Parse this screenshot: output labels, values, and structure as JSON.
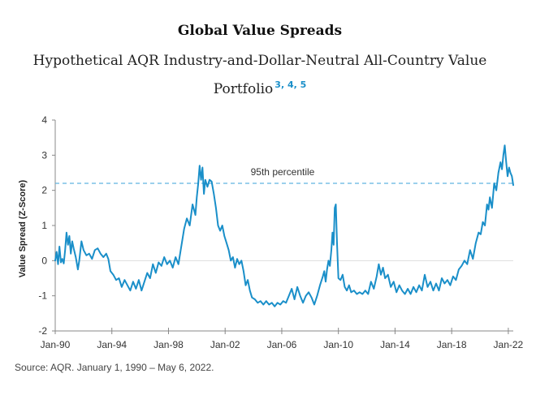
{
  "chart_data": {
    "type": "line",
    "title": "Global Value Spreads",
    "subtitle": "Hypothetical AQR Industry-and-Dollar-Neutral All-Country Value Portfolio",
    "footnote_refs": "3, 4, 5",
    "xlabel": "",
    "ylabel": "Value Spread (Z-Score)",
    "ylim": [
      -2,
      4
    ],
    "yticks": [
      4,
      3,
      2,
      1,
      0,
      -1,
      -2
    ],
    "xlim": [
      1990,
      2022.35
    ],
    "xticks": [
      {
        "label": "Jan-90",
        "year": 1990
      },
      {
        "label": "Jan-94",
        "year": 1994
      },
      {
        "label": "Jan-98",
        "year": 1998
      },
      {
        "label": "Jan-02",
        "year": 2002
      },
      {
        "label": "Jan-06",
        "year": 2006
      },
      {
        "label": "Jan-10",
        "year": 2010
      },
      {
        "label": "Jan-14",
        "year": 2014
      },
      {
        "label": "Jan-18",
        "year": 2018
      },
      {
        "label": "Jan-22",
        "year": 2022
      }
    ],
    "reference_line": {
      "label": "95th percentile",
      "value": 2.2
    },
    "series": [
      {
        "name": "Value Spread",
        "color": "#1a8fc9",
        "points": [
          [
            1990.0,
            0.0
          ],
          [
            1990.1,
            0.25
          ],
          [
            1990.2,
            -0.1
          ],
          [
            1990.3,
            0.4
          ],
          [
            1990.4,
            -0.05
          ],
          [
            1990.5,
            0.05
          ],
          [
            1990.6,
            -0.08
          ],
          [
            1990.7,
            0.3
          ],
          [
            1990.8,
            0.8
          ],
          [
            1990.9,
            0.45
          ],
          [
            1991.0,
            0.7
          ],
          [
            1991.1,
            0.2
          ],
          [
            1991.2,
            0.55
          ],
          [
            1991.3,
            0.35
          ],
          [
            1991.45,
            0.1
          ],
          [
            1991.6,
            -0.25
          ],
          [
            1991.7,
            0.0
          ],
          [
            1991.85,
            0.55
          ],
          [
            1992.0,
            0.3
          ],
          [
            1992.2,
            0.15
          ],
          [
            1992.4,
            0.2
          ],
          [
            1992.6,
            0.05
          ],
          [
            1992.8,
            0.3
          ],
          [
            1993.0,
            0.35
          ],
          [
            1993.2,
            0.2
          ],
          [
            1993.4,
            0.1
          ],
          [
            1993.6,
            0.2
          ],
          [
            1993.75,
            0.05
          ],
          [
            1993.9,
            -0.3
          ],
          [
            1994.1,
            -0.4
          ],
          [
            1994.3,
            -0.55
          ],
          [
            1994.5,
            -0.5
          ],
          [
            1994.7,
            -0.75
          ],
          [
            1994.9,
            -0.55
          ],
          [
            1995.1,
            -0.7
          ],
          [
            1995.3,
            -0.85
          ],
          [
            1995.5,
            -0.6
          ],
          [
            1995.7,
            -0.8
          ],
          [
            1995.9,
            -0.55
          ],
          [
            1996.1,
            -0.85
          ],
          [
            1996.3,
            -0.6
          ],
          [
            1996.5,
            -0.35
          ],
          [
            1996.7,
            -0.5
          ],
          [
            1996.9,
            -0.1
          ],
          [
            1997.1,
            -0.35
          ],
          [
            1997.3,
            -0.05
          ],
          [
            1997.5,
            -0.15
          ],
          [
            1997.7,
            0.1
          ],
          [
            1997.9,
            -0.1
          ],
          [
            1998.1,
            0.0
          ],
          [
            1998.3,
            -0.2
          ],
          [
            1998.5,
            0.1
          ],
          [
            1998.7,
            -0.1
          ],
          [
            1998.9,
            0.4
          ],
          [
            1999.1,
            0.9
          ],
          [
            1999.3,
            1.2
          ],
          [
            1999.5,
            1.0
          ],
          [
            1999.7,
            1.6
          ],
          [
            1999.9,
            1.3
          ],
          [
            2000.0,
            1.8
          ],
          [
            2000.1,
            2.2
          ],
          [
            2000.2,
            2.7
          ],
          [
            2000.3,
            2.3
          ],
          [
            2000.4,
            2.65
          ],
          [
            2000.5,
            1.9
          ],
          [
            2000.6,
            2.3
          ],
          [
            2000.75,
            2.1
          ],
          [
            2000.9,
            2.3
          ],
          [
            2001.05,
            2.25
          ],
          [
            2001.2,
            1.9
          ],
          [
            2001.35,
            1.5
          ],
          [
            2001.5,
            1.0
          ],
          [
            2001.65,
            0.85
          ],
          [
            2001.8,
            1.0
          ],
          [
            2001.95,
            0.7
          ],
          [
            2002.1,
            0.5
          ],
          [
            2002.25,
            0.3
          ],
          [
            2002.4,
            0.0
          ],
          [
            2002.55,
            0.1
          ],
          [
            2002.7,
            -0.2
          ],
          [
            2002.85,
            0.05
          ],
          [
            2003.0,
            -0.1
          ],
          [
            2003.15,
            0.0
          ],
          [
            2003.3,
            -0.3
          ],
          [
            2003.45,
            -0.7
          ],
          [
            2003.6,
            -0.55
          ],
          [
            2003.75,
            -0.85
          ],
          [
            2003.9,
            -1.05
          ],
          [
            2004.1,
            -1.1
          ],
          [
            2004.3,
            -1.2
          ],
          [
            2004.5,
            -1.15
          ],
          [
            2004.7,
            -1.25
          ],
          [
            2004.9,
            -1.15
          ],
          [
            2005.1,
            -1.25
          ],
          [
            2005.3,
            -1.2
          ],
          [
            2005.5,
            -1.3
          ],
          [
            2005.7,
            -1.2
          ],
          [
            2005.9,
            -1.25
          ],
          [
            2006.1,
            -1.15
          ],
          [
            2006.3,
            -1.2
          ],
          [
            2006.5,
            -1.0
          ],
          [
            2006.7,
            -0.8
          ],
          [
            2006.9,
            -1.1
          ],
          [
            2007.1,
            -0.75
          ],
          [
            2007.3,
            -1.0
          ],
          [
            2007.5,
            -1.2
          ],
          [
            2007.7,
            -1.0
          ],
          [
            2007.9,
            -0.9
          ],
          [
            2008.1,
            -1.05
          ],
          [
            2008.3,
            -1.25
          ],
          [
            2008.5,
            -1.0
          ],
          [
            2008.7,
            -0.7
          ],
          [
            2008.9,
            -0.45
          ],
          [
            2009.0,
            -0.3
          ],
          [
            2009.1,
            -0.6
          ],
          [
            2009.2,
            -0.25
          ],
          [
            2009.3,
            0.0
          ],
          [
            2009.4,
            -0.15
          ],
          [
            2009.5,
            0.3
          ],
          [
            2009.58,
            0.8
          ],
          [
            2009.66,
            0.45
          ],
          [
            2009.74,
            1.5
          ],
          [
            2009.82,
            1.6
          ],
          [
            2009.9,
            0.55
          ],
          [
            2010.0,
            -0.5
          ],
          [
            2010.15,
            -0.55
          ],
          [
            2010.3,
            -0.4
          ],
          [
            2010.45,
            -0.75
          ],
          [
            2010.6,
            -0.85
          ],
          [
            2010.75,
            -0.7
          ],
          [
            2010.9,
            -0.9
          ],
          [
            2011.1,
            -0.85
          ],
          [
            2011.3,
            -0.95
          ],
          [
            2011.5,
            -0.9
          ],
          [
            2011.7,
            -0.95
          ],
          [
            2011.9,
            -0.85
          ],
          [
            2012.1,
            -0.95
          ],
          [
            2012.3,
            -0.6
          ],
          [
            2012.5,
            -0.8
          ],
          [
            2012.7,
            -0.45
          ],
          [
            2012.85,
            -0.1
          ],
          [
            2013.0,
            -0.4
          ],
          [
            2013.15,
            -0.2
          ],
          [
            2013.3,
            -0.5
          ],
          [
            2013.5,
            -0.4
          ],
          [
            2013.7,
            -0.75
          ],
          [
            2013.9,
            -0.6
          ],
          [
            2014.1,
            -0.9
          ],
          [
            2014.3,
            -0.7
          ],
          [
            2014.5,
            -0.85
          ],
          [
            2014.7,
            -0.95
          ],
          [
            2014.9,
            -0.8
          ],
          [
            2015.1,
            -0.95
          ],
          [
            2015.3,
            -0.75
          ],
          [
            2015.5,
            -0.9
          ],
          [
            2015.7,
            -0.7
          ],
          [
            2015.9,
            -0.85
          ],
          [
            2016.1,
            -0.4
          ],
          [
            2016.3,
            -0.75
          ],
          [
            2016.5,
            -0.6
          ],
          [
            2016.7,
            -0.85
          ],
          [
            2016.9,
            -0.65
          ],
          [
            2017.1,
            -0.85
          ],
          [
            2017.3,
            -0.5
          ],
          [
            2017.5,
            -0.65
          ],
          [
            2017.7,
            -0.55
          ],
          [
            2017.9,
            -0.7
          ],
          [
            2018.1,
            -0.45
          ],
          [
            2018.3,
            -0.55
          ],
          [
            2018.5,
            -0.25
          ],
          [
            2018.7,
            -0.15
          ],
          [
            2018.9,
            0.0
          ],
          [
            2019.1,
            -0.1
          ],
          [
            2019.3,
            0.3
          ],
          [
            2019.5,
            0.05
          ],
          [
            2019.7,
            0.5
          ],
          [
            2019.9,
            0.8
          ],
          [
            2020.05,
            0.75
          ],
          [
            2020.2,
            1.1
          ],
          [
            2020.35,
            1.0
          ],
          [
            2020.5,
            1.6
          ],
          [
            2020.6,
            1.45
          ],
          [
            2020.7,
            1.8
          ],
          [
            2020.85,
            1.5
          ],
          [
            2021.0,
            2.2
          ],
          [
            2021.15,
            2.0
          ],
          [
            2021.3,
            2.5
          ],
          [
            2021.45,
            2.8
          ],
          [
            2021.55,
            2.6
          ],
          [
            2021.65,
            3.0
          ],
          [
            2021.75,
            3.28
          ],
          [
            2021.85,
            2.8
          ],
          [
            2021.95,
            2.4
          ],
          [
            2022.05,
            2.65
          ],
          [
            2022.15,
            2.5
          ],
          [
            2022.25,
            2.4
          ],
          [
            2022.35,
            2.15
          ]
        ]
      }
    ]
  },
  "header": {
    "title": "Global Value Spreads",
    "subtitle": "Hypothetical AQR Industry-and-Dollar-Neutral All-Country Value Portfolio",
    "footnotes": "3, 4, 5"
  },
  "footer": {
    "source": "Source: AQR. January 1, 1990 – May 6, 2022."
  },
  "colors": {
    "line": "#1a8fc9",
    "reference": "#5fb4e0",
    "axis": "#888888",
    "text": "#333333"
  }
}
